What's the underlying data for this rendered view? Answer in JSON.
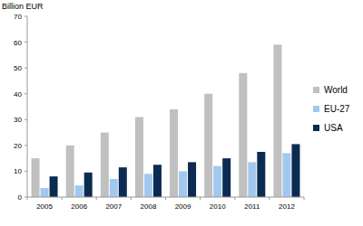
{
  "chart_data": {
    "type": "bar",
    "y_label": "Billion EUR",
    "categories": [
      "2005",
      "2006",
      "2007",
      "2008",
      "2009",
      "2010",
      "2011",
      "2012"
    ],
    "series": [
      {
        "name": "World",
        "color": "#c0c0c0",
        "values": [
          15,
          20,
          25,
          31,
          34,
          40,
          48,
          59
        ]
      },
      {
        "name": "EU-27",
        "color": "#a3c8f0",
        "values": [
          3.5,
          4.5,
          7,
          9,
          10,
          12,
          13.5,
          17
        ]
      },
      {
        "name": "USA",
        "color": "#0c2b52",
        "values": [
          8,
          9.5,
          11.5,
          12.5,
          13.5,
          15,
          17.5,
          20.5
        ]
      }
    ],
    "ylim": [
      0,
      70
    ],
    "yticks": [
      0,
      10,
      20,
      30,
      40,
      50,
      60,
      70
    ],
    "grid": false,
    "legend": "right"
  }
}
